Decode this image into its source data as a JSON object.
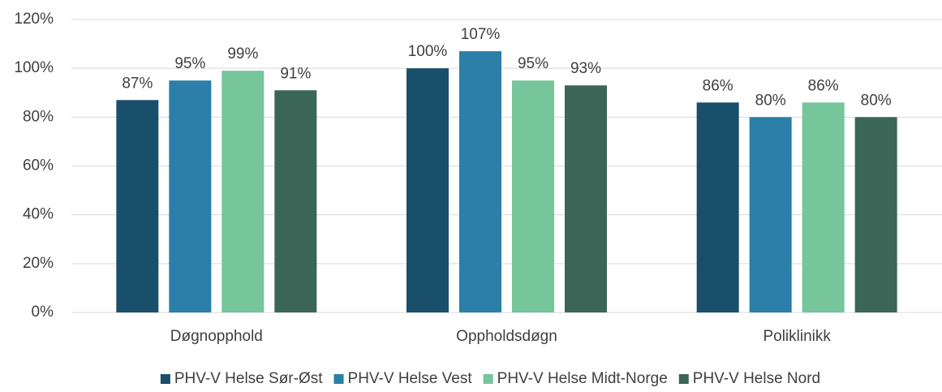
{
  "chart_data": {
    "type": "bar",
    "categories": [
      "Døgnopphold",
      "Oppholdsdøgn",
      "Poliklinikk"
    ],
    "series": [
      {
        "name": "PHV-V Helse Sør-Øst",
        "color": "#1a4f6b",
        "values": [
          87,
          100,
          86
        ],
        "value_labels": [
          "87%",
          "100%",
          "86%"
        ]
      },
      {
        "name": "PHV-V Helse Vest",
        "color": "#2b7fa8",
        "values": [
          95,
          107,
          80
        ],
        "value_labels": [
          "95%",
          "107%",
          "80%"
        ]
      },
      {
        "name": "PHV-V Helse Midt-Norge",
        "color": "#76c59b",
        "values": [
          99,
          95,
          86
        ],
        "value_labels": [
          "99%",
          "95%",
          "86%"
        ]
      },
      {
        "name": "PHV-V Helse Nord",
        "color": "#3b6657",
        "values": [
          91,
          93,
          80
        ],
        "value_labels": [
          "91%",
          "93%",
          "80%"
        ]
      }
    ],
    "ylim": [
      0,
      120
    ],
    "yticks": [
      {
        "value": 0,
        "label": "0%"
      },
      {
        "value": 20,
        "label": "20%"
      },
      {
        "value": 40,
        "label": "40%"
      },
      {
        "value": 60,
        "label": "60%"
      },
      {
        "value": 80,
        "label": "80%"
      },
      {
        "value": 100,
        "label": "100%"
      },
      {
        "value": 120,
        "label": "120%"
      }
    ],
    "grid": true,
    "legend": "bottom"
  }
}
